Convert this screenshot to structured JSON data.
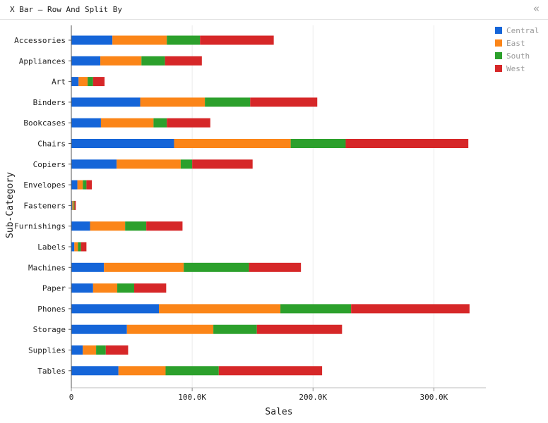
{
  "header": {
    "title": "X Bar – Row And Split By",
    "collapse_glyph": "«"
  },
  "colors": {
    "Central": "#1565d8",
    "East": "#fb8518",
    "South": "#2ca02c",
    "West": "#d62728"
  },
  "chart_data": {
    "type": "bar",
    "orientation": "horizontal",
    "stacked": true,
    "title": "",
    "xlabel": "Sales",
    "ylabel": "Sub-Category",
    "xlim": [
      0,
      343000
    ],
    "xticks": [
      0,
      100000,
      200000,
      300000
    ],
    "xtick_labels": [
      "0",
      "100.0K",
      "200.0K",
      "300.0K"
    ],
    "grid": "vertical",
    "legend_position": "top-right",
    "categories": [
      "Accessories",
      "Appliances",
      "Art",
      "Binders",
      "Bookcases",
      "Chairs",
      "Copiers",
      "Envelopes",
      "Fasteners",
      "Furnishings",
      "Labels",
      "Machines",
      "Paper",
      "Phones",
      "Storage",
      "Supplies",
      "Tables"
    ],
    "series": [
      {
        "name": "Central",
        "values": [
          34000,
          24000,
          6000,
          57000,
          24500,
          85000,
          37500,
          5000,
          800,
          15500,
          2500,
          27000,
          18000,
          72500,
          46000,
          9500,
          39000
        ]
      },
      {
        "name": "East",
        "values": [
          45000,
          34000,
          7500,
          53500,
          43500,
          96500,
          53000,
          4500,
          1100,
          29000,
          3000,
          66000,
          20000,
          100500,
          71500,
          11000,
          39000
        ]
      },
      {
        "name": "South",
        "values": [
          27500,
          19500,
          4500,
          37500,
          11000,
          45500,
          9500,
          3000,
          700,
          17500,
          2500,
          54000,
          14000,
          58500,
          36000,
          8000,
          44000
        ]
      },
      {
        "name": "West",
        "values": [
          61000,
          30500,
          9500,
          55500,
          36000,
          101500,
          50000,
          4500,
          1100,
          30000,
          4500,
          43000,
          26500,
          98000,
          70500,
          18500,
          85500
        ]
      }
    ]
  }
}
